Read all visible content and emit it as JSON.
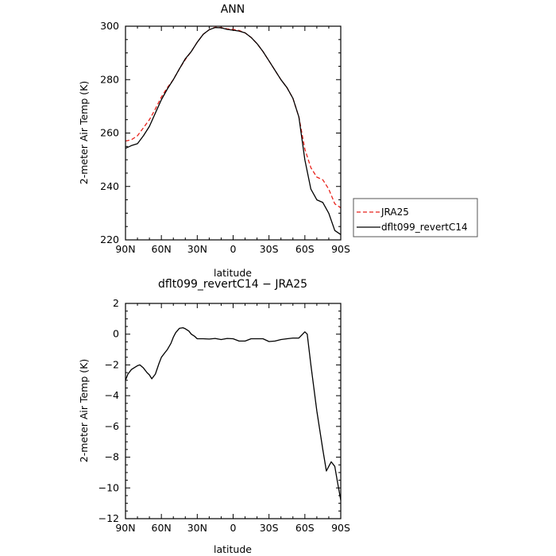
{
  "chart_data": [
    {
      "type": "line",
      "title": "ANN",
      "xlabel": "latitude",
      "ylabel": "2-meter Air Temp (K)",
      "xlim": [
        90,
        -90
      ],
      "ylim": [
        220,
        300
      ],
      "xticks": [
        90,
        60,
        30,
        0,
        -30,
        -60,
        -90
      ],
      "xticklabels": [
        "90N",
        "60N",
        "30N",
        "0",
        "30S",
        "60S",
        "90S"
      ],
      "yticks": [
        220,
        240,
        260,
        280,
        300
      ],
      "yticklabels": [
        "220",
        "240",
        "260",
        "280",
        "300"
      ],
      "legend": {
        "position": "right",
        "entries": [
          "JRA25",
          "dflt099_revertC14"
        ]
      },
      "series": [
        {
          "name": "JRA25",
          "color": "#e8221b",
          "dash": "dashed",
          "x": [
            90,
            85,
            80,
            75,
            70,
            65,
            60,
            55,
            50,
            45,
            40,
            35,
            30,
            25,
            20,
            15,
            10,
            5,
            0,
            -5,
            -10,
            -15,
            -20,
            -25,
            -30,
            -35,
            -40,
            -45,
            -50,
            -55,
            -60,
            -65,
            -70,
            -75,
            -80,
            -85,
            -90
          ],
          "y": [
            257,
            257.5,
            259,
            262,
            265,
            269,
            273.5,
            277,
            280,
            284,
            287.5,
            290.5,
            294,
            297,
            298.7,
            299.6,
            299.5,
            299,
            298.8,
            298.4,
            297.5,
            295.8,
            293.5,
            290.5,
            287,
            283.5,
            280,
            277,
            273,
            266,
            254,
            247,
            243.5,
            242.5,
            239,
            233.5,
            232
          ]
        },
        {
          "name": "dflt099_revertC14",
          "color": "#000000",
          "dash": "solid",
          "x": [
            90,
            85,
            80,
            75,
            70,
            65,
            60,
            55,
            50,
            45,
            40,
            35,
            30,
            25,
            20,
            15,
            10,
            5,
            0,
            -5,
            -10,
            -15,
            -20,
            -25,
            -30,
            -35,
            -40,
            -45,
            -50,
            -55,
            -60,
            -65,
            -70,
            -75,
            -80,
            -85,
            -90
          ],
          "y": [
            254.3,
            255.3,
            256,
            259,
            262.5,
            267.5,
            272.5,
            276.5,
            280,
            284,
            287.8,
            290.5,
            294,
            297,
            298.7,
            299.5,
            299.4,
            298.8,
            298.5,
            298.2,
            297.5,
            295.8,
            293.5,
            290.5,
            287,
            283.5,
            280,
            277,
            273,
            266,
            250,
            239,
            235,
            234,
            230,
            223.5,
            222
          ]
        }
      ]
    },
    {
      "type": "line",
      "title": "dflt099_revertC14 − JRA25",
      "xlabel": "latitude",
      "ylabel": "2-meter Air Temp (K)",
      "xlim": [
        90,
        -90
      ],
      "ylim": [
        -12,
        2
      ],
      "xticks": [
        90,
        60,
        30,
        0,
        -30,
        -60,
        -90
      ],
      "xticklabels": [
        "90N",
        "60N",
        "30N",
        "0",
        "30S",
        "60S",
        "90S"
      ],
      "yticks": [
        -12,
        -10,
        -8,
        -6,
        -4,
        -2,
        0,
        2
      ],
      "yticklabels": [
        "−12",
        "−10",
        "−8",
        "−6",
        "−4",
        "−2",
        "0",
        "2"
      ],
      "series": [
        {
          "color": "#000000",
          "dash": "solid",
          "x": [
            90,
            88,
            85,
            82,
            80,
            78,
            75,
            72,
            70,
            68,
            65,
            62,
            60,
            57,
            55,
            52,
            50,
            48,
            45,
            42,
            40,
            37,
            35,
            32,
            30,
            27,
            25,
            20,
            15,
            10,
            5,
            0,
            -5,
            -10,
            -15,
            -20,
            -25,
            -30,
            -35,
            -40,
            -45,
            -50,
            -55,
            -60,
            -62,
            -65,
            -70,
            -75,
            -78,
            -80,
            -82,
            -85,
            -87,
            -90
          ],
          "y": [
            -3,
            -2.6,
            -2.3,
            -2.15,
            -2.05,
            -2.0,
            -2.2,
            -2.5,
            -2.65,
            -2.9,
            -2.6,
            -1.9,
            -1.5,
            -1.2,
            -1.0,
            -0.6,
            -0.2,
            0.1,
            0.38,
            0.42,
            0.35,
            0.2,
            0.0,
            -0.15,
            -0.3,
            -0.3,
            -0.3,
            -0.32,
            -0.28,
            -0.35,
            -0.28,
            -0.3,
            -0.45,
            -0.45,
            -0.3,
            -0.3,
            -0.3,
            -0.48,
            -0.45,
            -0.35,
            -0.3,
            -0.25,
            -0.25,
            0.15,
            0.0,
            -2.0,
            -5.0,
            -7.5,
            -8.9,
            -8.6,
            -8.3,
            -8.6,
            -9.5,
            -10.8
          ]
        }
      ]
    }
  ]
}
